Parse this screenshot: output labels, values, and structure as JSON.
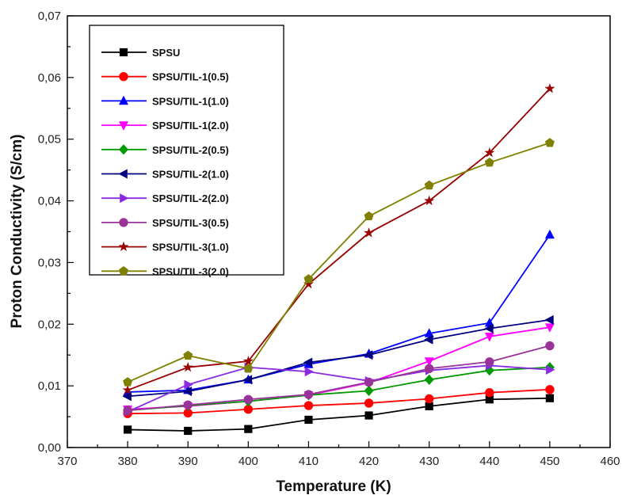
{
  "chart_data": {
    "type": "line",
    "title": "",
    "xlabel": "Temperature (K)",
    "ylabel": "Proton Conductivity (S/cm)",
    "xlim": [
      370,
      460
    ],
    "ylim": [
      0,
      0.07
    ],
    "x_ticks": [
      {
        "value": 370,
        "label": "370"
      },
      {
        "value": 380,
        "label": "380"
      },
      {
        "value": 390,
        "label": "390"
      },
      {
        "value": 400,
        "label": "400"
      },
      {
        "value": 410,
        "label": "410"
      },
      {
        "value": 420,
        "label": "420"
      },
      {
        "value": 430,
        "label": "430"
      },
      {
        "value": 440,
        "label": "440"
      },
      {
        "value": 450,
        "label": "450"
      },
      {
        "value": 460,
        "label": "460"
      }
    ],
    "y_ticks": [
      {
        "value": 0.0,
        "label": "0,00"
      },
      {
        "value": 0.01,
        "label": "0,01"
      },
      {
        "value": 0.02,
        "label": "0,02"
      },
      {
        "value": 0.03,
        "label": "0,03"
      },
      {
        "value": 0.04,
        "label": "0,04"
      },
      {
        "value": 0.05,
        "label": "0,05"
      },
      {
        "value": 0.06,
        "label": "0,06"
      },
      {
        "value": 0.07,
        "label": "0,07"
      }
    ],
    "grid": false,
    "legend_position": "top-left",
    "x": [
      380,
      390,
      400,
      410,
      420,
      430,
      440,
      450
    ],
    "series": [
      {
        "name": "SPSU",
        "color": "#000000",
        "marker": "square",
        "values": [
          0.0029,
          0.0027,
          0.003,
          0.0045,
          0.0052,
          0.0067,
          0.0078,
          0.008
        ]
      },
      {
        "name": "SPSU/TIL-1(0.5)",
        "color": "#ff0000",
        "marker": "circle",
        "values": [
          0.0055,
          0.0056,
          0.0062,
          0.0068,
          0.0072,
          0.0079,
          0.0089,
          0.0094
        ]
      },
      {
        "name": "SPSU/TIL-1(1.0)",
        "color": "#0000ff",
        "marker": "triangle-up",
        "values": [
          0.009,
          0.0093,
          0.011,
          0.0135,
          0.0152,
          0.0185,
          0.0202,
          0.0345
        ]
      },
      {
        "name": "SPSU/TIL-1(2.0)",
        "color": "#ff00ff",
        "marker": "triangle-down",
        "values": [
          0.0062,
          0.0067,
          0.0075,
          0.0085,
          0.0105,
          0.014,
          0.018,
          0.0195
        ]
      },
      {
        "name": "SPSU/TIL-2(0.5)",
        "color": "#009900",
        "marker": "diamond",
        "values": [
          0.006,
          0.0068,
          0.0075,
          0.0085,
          0.0092,
          0.011,
          0.0125,
          0.013
        ]
      },
      {
        "name": "SPSU/TIL-2(1.0)",
        "color": "#000080",
        "marker": "triangle-left",
        "values": [
          0.0083,
          0.0091,
          0.011,
          0.0138,
          0.015,
          0.0175,
          0.0193,
          0.0207
        ]
      },
      {
        "name": "SPSU/TIL-2(2.0)",
        "color": "#8a2be2",
        "marker": "triangle-right",
        "values": [
          0.0058,
          0.0102,
          0.013,
          0.0123,
          0.0108,
          0.0125,
          0.0133,
          0.0126
        ]
      },
      {
        "name": "SPSU/TIL-3(0.5)",
        "color": "#993399",
        "marker": "circle",
        "values": [
          0.006,
          0.0069,
          0.0078,
          0.0086,
          0.0106,
          0.0128,
          0.0139,
          0.0165
        ]
      },
      {
        "name": "SPSU/TIL-3(1.0)",
        "color": "#990000",
        "marker": "star",
        "values": [
          0.0093,
          0.013,
          0.014,
          0.0265,
          0.0348,
          0.04,
          0.0478,
          0.0582
        ]
      },
      {
        "name": "SPSU/TIL-3(2.0)",
        "color": "#808000",
        "marker": "pentagon",
        "values": [
          0.0106,
          0.0149,
          0.0128,
          0.0273,
          0.0375,
          0.0425,
          0.0462,
          0.0494
        ]
      }
    ]
  }
}
